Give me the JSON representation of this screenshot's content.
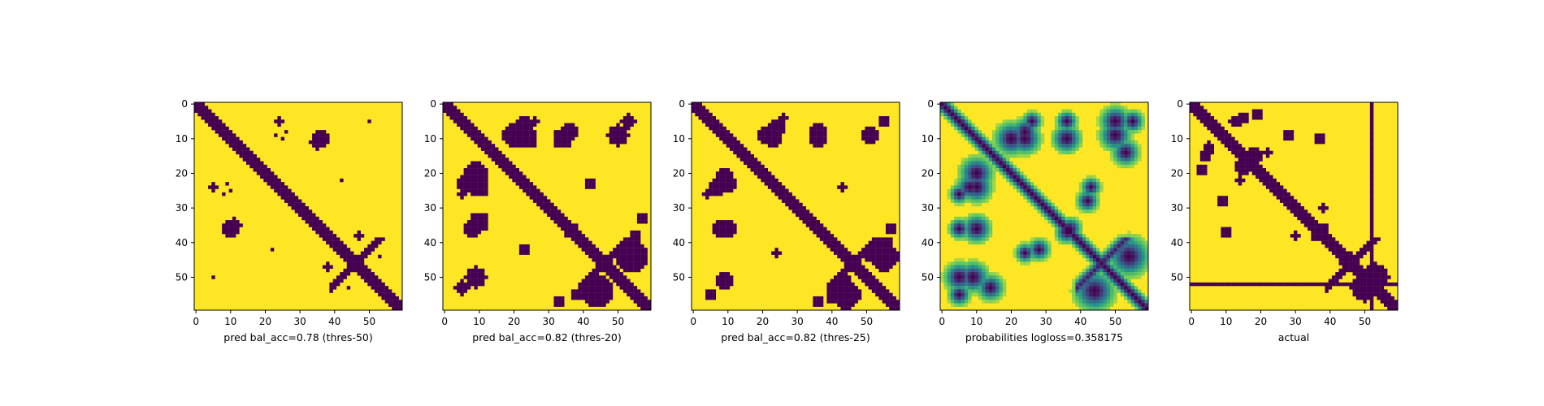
{
  "figure": {
    "type": "heatmap",
    "colors": {
      "low": "#440154",
      "high": "#fde725",
      "mid": "#21918c",
      "mid2": "#5ec962"
    }
  },
  "chart_data": [
    {
      "type": "heatmap",
      "xlabel": "pred bal_acc=0.78 (thres-50)",
      "grid_size": 60,
      "xticks": [
        0,
        10,
        20,
        30,
        40,
        50
      ],
      "yticks": [
        0,
        10,
        20,
        30,
        40,
        50
      ],
      "binary": true,
      "diag_width": 2,
      "blobs": [
        [
          10,
          36,
          2.2
        ],
        [
          24,
          5,
          1.0
        ],
        [
          23,
          9,
          0.8
        ],
        [
          50,
          5,
          0.8
        ],
        [
          47,
          38,
          1.2
        ],
        [
          12,
          35,
          1.2
        ],
        [
          8,
          26,
          0.7
        ],
        [
          10,
          25,
          0.7
        ],
        [
          11,
          34,
          0.9
        ],
        [
          22,
          42,
          0.6
        ],
        [
          42,
          50,
          0.7
        ],
        [
          44,
          53,
          0.7
        ]
      ]
    },
    {
      "type": "heatmap",
      "xlabel": "pred bal_acc=0.82 (thres-20)",
      "grid_size": 60,
      "xticks": [
        0,
        10,
        20,
        30,
        40,
        50
      ],
      "yticks": [
        0,
        10,
        20,
        30,
        40,
        50
      ],
      "binary": true,
      "diag_width": 2.3,
      "blobs": [
        [
          10,
          24,
          2.5
        ],
        [
          20,
          9,
          2.8
        ],
        [
          34,
          10,
          2.5
        ],
        [
          36,
          37,
          1.6
        ],
        [
          23,
          42,
          1.4
        ],
        [
          6,
          23,
          2.2
        ],
        [
          8,
          36,
          2.2
        ],
        [
          44,
          54,
          4.0
        ],
        [
          50,
          9,
          2.6
        ],
        [
          53,
          5,
          1.8
        ],
        [
          26,
          5,
          1.0
        ],
        [
          43,
          52,
          2.2
        ],
        [
          57,
          33,
          1.6
        ],
        [
          55,
          38,
          1.6
        ]
      ]
    },
    {
      "type": "heatmap",
      "xlabel": "pred bal_acc=0.82 (thres-25)",
      "grid_size": 60,
      "xticks": [
        0,
        10,
        20,
        30,
        40,
        50
      ],
      "yticks": [
        0,
        10,
        20,
        30,
        40,
        50
      ],
      "binary": true,
      "diag_width": 2.2,
      "blobs": [
        [
          10,
          23,
          2.2
        ],
        [
          21,
          9,
          2.4
        ],
        [
          36,
          10,
          2.0
        ],
        [
          37,
          37,
          1.4
        ],
        [
          24,
          43,
          1.2
        ],
        [
          7,
          24,
          2.0
        ],
        [
          8,
          36,
          2.0
        ],
        [
          44,
          55,
          3.6
        ],
        [
          51,
          9,
          2.2
        ],
        [
          55,
          5,
          1.5
        ],
        [
          26,
          4,
          0.9
        ],
        [
          43,
          51,
          2.0
        ],
        [
          57,
          36,
          1.4
        ],
        [
          56,
          40,
          1.4
        ]
      ]
    },
    {
      "type": "heatmap",
      "xlabel": "probabilities logloss=0.358175",
      "grid_size": 60,
      "xticks": [
        0,
        10,
        20,
        30,
        40,
        50
      ],
      "yticks": [
        0,
        10,
        20,
        30,
        40,
        50
      ],
      "binary": false,
      "diag_width": 1.7,
      "blobs": [
        [
          10,
          24,
          2.6
        ],
        [
          20,
          10,
          2.8
        ],
        [
          36,
          10,
          2.4
        ],
        [
          37,
          36,
          1.9
        ],
        [
          24,
          43,
          1.6
        ],
        [
          8,
          24,
          2.2
        ],
        [
          10,
          36,
          2.4
        ],
        [
          44,
          54,
          3.4
        ],
        [
          50,
          9,
          2.6
        ],
        [
          55,
          5,
          1.8
        ],
        [
          26,
          5,
          1.6
        ],
        [
          28,
          42,
          1.8
        ],
        [
          5,
          50,
          2.5
        ],
        [
          14,
          53,
          2.2
        ],
        [
          36,
          5,
          1.7
        ]
      ]
    },
    {
      "type": "heatmap",
      "xlabel": "actual",
      "grid_size": 60,
      "xticks": [
        0,
        10,
        20,
        30,
        40,
        50
      ],
      "yticks": [
        0,
        10,
        20,
        30,
        40,
        50
      ],
      "binary": true,
      "diag_width": 2.1,
      "lines": {
        "row": 52,
        "col": 52
      },
      "blobs": [
        [
          10,
          37,
          1.6
        ],
        [
          13,
          5,
          1.3
        ],
        [
          14,
          22,
          1.0
        ],
        [
          9,
          28,
          1.4
        ],
        [
          4,
          15,
          1.6
        ],
        [
          30,
          38,
          1.2
        ],
        [
          53,
          50,
          3.5
        ],
        [
          51,
          54,
          2.2
        ],
        [
          3,
          19,
          1.6
        ],
        [
          15,
          18,
          2.0
        ],
        [
          44,
          45,
          1.5
        ],
        [
          38,
          36,
          1.3
        ],
        [
          22,
          15,
          0.8
        ],
        [
          5,
          12,
          1.2
        ]
      ]
    }
  ]
}
